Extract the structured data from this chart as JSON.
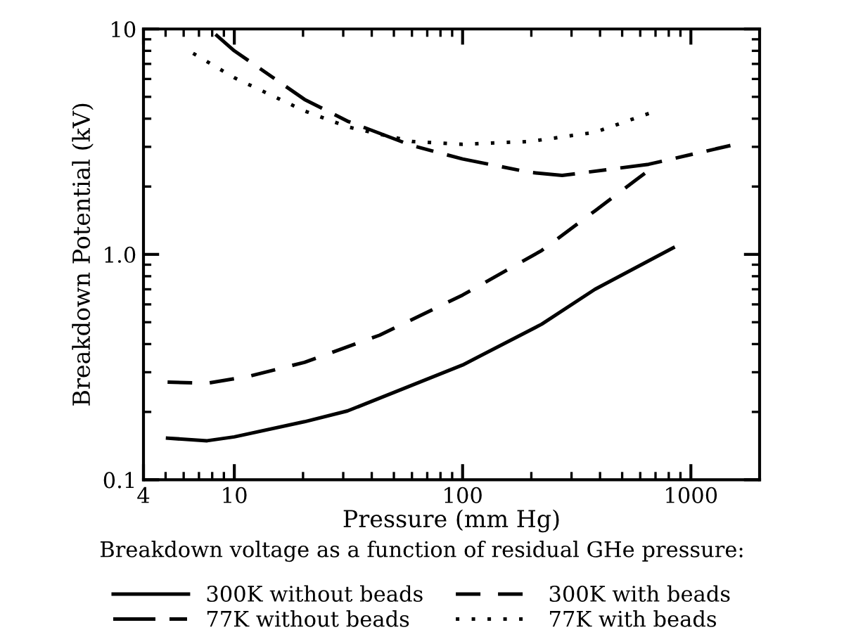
{
  "chart_data": {
    "type": "line",
    "xlabel": "Pressure (mm Hg)",
    "ylabel": "Breakdown Potential (kV)",
    "log": "xy",
    "xlim": [
      4,
      2000
    ],
    "xticks": [
      4,
      10,
      100,
      1000
    ],
    "ylim": [
      0.1,
      10
    ],
    "yticks": [
      {
        "value": 0.1,
        "label": "0.1"
      },
      {
        "value": 1,
        "label": "1.0"
      },
      10
    ],
    "grid": false,
    "legend": "bottom",
    "marker": "none",
    "annotations": [
      "Breakdown voltage as a function of residual GHe pressure:"
    ],
    "series": [
      {
        "name": "300K without beads",
        "color": "#000000",
        "line_style": "solid",
        "x": [
          5.1,
          7.6,
          10,
          20.3,
          31.3,
          100,
          222,
          380,
          837
        ],
        "values": [
          0.153,
          0.149,
          0.155,
          0.181,
          0.202,
          0.323,
          0.49,
          0.7,
          1.07
        ]
      },
      {
        "name": "77K without beads",
        "color": "#000000",
        "line_style": "longdash",
        "x": [
          8.27,
          10,
          20.3,
          31.3,
          60,
          100,
          198,
          273,
          653,
          1490
        ],
        "values": [
          9.47,
          8.0,
          4.87,
          3.9,
          3.04,
          2.65,
          2.31,
          2.24,
          2.51,
          3.04
        ]
      },
      {
        "name": "300K with beads",
        "color": "#000000",
        "line_style": "dashed",
        "x": [
          5.1,
          7.6,
          11.8,
          20.3,
          43.3,
          100,
          222,
          380,
          690
        ],
        "values": [
          0.271,
          0.268,
          0.289,
          0.332,
          0.438,
          0.66,
          1.04,
          1.56,
          2.46
        ]
      },
      {
        "name": "77K with beads",
        "color": "#000000",
        "line_style": "dotted",
        "x": [
          6.6,
          10,
          20.3,
          31.3,
          60,
          100,
          198,
          380,
          690
        ],
        "values": [
          7.8,
          6.08,
          4.33,
          3.68,
          3.17,
          3.08,
          3.17,
          3.48,
          4.3
        ]
      }
    ]
  }
}
